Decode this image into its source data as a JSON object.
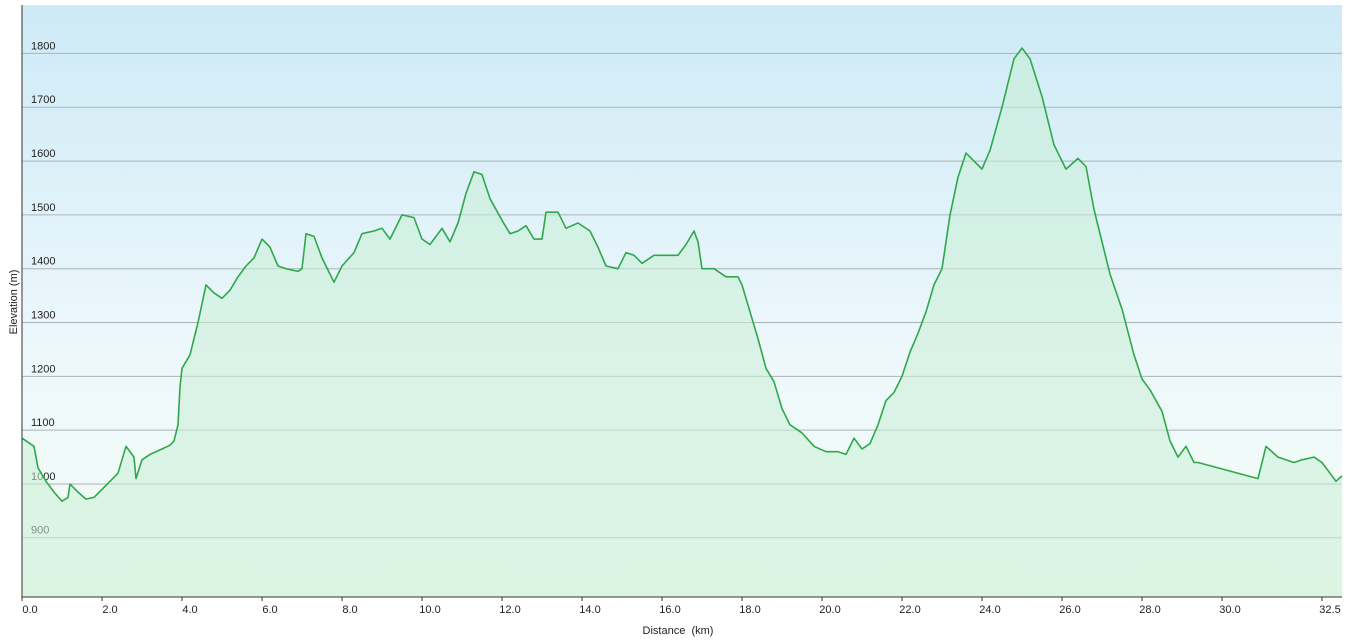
{
  "chart_data": {
    "type": "area",
    "x_label": "Distance  (km)",
    "y_label": "Elevation (m)",
    "line_color": "#2ea84b",
    "fill_color": "#c9efd6",
    "grid": true,
    "xlim": [
      0,
      33
    ],
    "ylim": [
      790,
      1890
    ],
    "xticks": [
      {
        "value": 0,
        "label": "0.0"
      },
      {
        "value": 2,
        "label": "2.0"
      },
      {
        "value": 4,
        "label": "4.0"
      },
      {
        "value": 6,
        "label": "6.0"
      },
      {
        "value": 8,
        "label": "8.0"
      },
      {
        "value": 10,
        "label": "10.0"
      },
      {
        "value": 12,
        "label": "12.0"
      },
      {
        "value": 14,
        "label": "14.0"
      },
      {
        "value": 16,
        "label": "16.0"
      },
      {
        "value": 18,
        "label": "18.0"
      },
      {
        "value": 20,
        "label": "20.0"
      },
      {
        "value": 22,
        "label": "22.0"
      },
      {
        "value": 24,
        "label": "24.0"
      },
      {
        "value": 26,
        "label": "26.0"
      },
      {
        "value": 28,
        "label": "28.0"
      },
      {
        "value": 30,
        "label": "30.0"
      },
      {
        "value": 32.5,
        "label": "32.5"
      }
    ],
    "yticks": [
      900,
      1000,
      1100,
      1200,
      1300,
      1400,
      1500,
      1600,
      1700,
      1800
    ],
    "x": [
      0,
      0.3,
      0.4,
      0.6,
      0.8,
      1.0,
      1.15,
      1.2,
      1.4,
      1.6,
      1.8,
      2.0,
      2.2,
      2.4,
      2.5,
      2.6,
      2.8,
      2.85,
      3.0,
      3.2,
      3.5,
      3.7,
      3.8,
      3.9,
      3.95,
      4.0,
      4.2,
      4.4,
      4.6,
      4.8,
      5.0,
      5.2,
      5.4,
      5.6,
      5.8,
      6.0,
      6.2,
      6.4,
      6.6,
      6.9,
      7.0,
      7.1,
      7.3,
      7.5,
      7.7,
      7.8,
      8.0,
      8.3,
      8.5,
      8.8,
      9.0,
      9.2,
      9.5,
      9.8,
      10.0,
      10.2,
      10.5,
      10.7,
      10.9,
      11.1,
      11.3,
      11.5,
      11.7,
      12.0,
      12.2,
      12.4,
      12.6,
      12.8,
      13.0,
      13.1,
      13.4,
      13.6,
      13.9,
      14.2,
      14.4,
      14.6,
      14.9,
      15.1,
      15.3,
      15.5,
      15.8,
      16.1,
      16.4,
      16.6,
      16.8,
      16.9,
      17.0,
      17.3,
      17.6,
      17.9,
      18.0,
      18.2,
      18.4,
      18.6,
      18.8,
      19.0,
      19.2,
      19.5,
      19.8,
      20.1,
      20.4,
      20.6,
      20.8,
      21.0,
      21.2,
      21.4,
      21.6,
      21.8,
      22.0,
      22.2,
      22.4,
      22.6,
      22.8,
      23.0,
      23.2,
      23.4,
      23.6,
      23.8,
      24.0,
      24.2,
      24.5,
      24.8,
      25.0,
      25.2,
      25.5,
      25.8,
      26.1,
      26.4,
      26.6,
      26.8,
      27.0,
      27.2,
      27.5,
      27.8,
      28.0,
      28.2,
      28.5,
      28.7,
      28.9,
      29.1,
      29.3,
      29.4,
      30.9,
      31.0,
      31.1,
      31.4,
      31.8,
      32.0,
      32.3,
      32.5,
      32.7,
      32.85,
      33.0
    ],
    "values": [
      1085,
      1070,
      1030,
      1005,
      985,
      968,
      975,
      1000,
      985,
      972,
      975,
      990,
      1005,
      1020,
      1045,
      1070,
      1050,
      1010,
      1045,
      1055,
      1065,
      1072,
      1080,
      1110,
      1180,
      1215,
      1240,
      1300,
      1370,
      1355,
      1345,
      1360,
      1385,
      1405,
      1420,
      1455,
      1440,
      1405,
      1400,
      1395,
      1400,
      1465,
      1460,
      1420,
      1390,
      1375,
      1405,
      1430,
      1465,
      1470,
      1475,
      1455,
      1500,
      1495,
      1455,
      1445,
      1475,
      1450,
      1485,
      1540,
      1580,
      1575,
      1530,
      1490,
      1465,
      1470,
      1480,
      1455,
      1455,
      1505,
      1505,
      1475,
      1485,
      1470,
      1440,
      1405,
      1400,
      1430,
      1425,
      1410,
      1425,
      1425,
      1425,
      1445,
      1470,
      1450,
      1400,
      1400,
      1385,
      1385,
      1370,
      1320,
      1270,
      1215,
      1190,
      1140,
      1110,
      1095,
      1070,
      1060,
      1060,
      1055,
      1085,
      1065,
      1075,
      1110,
      1155,
      1170,
      1200,
      1245,
      1280,
      1320,
      1370,
      1400,
      1500,
      1570,
      1615,
      1600,
      1585,
      1620,
      1700,
      1790,
      1810,
      1790,
      1720,
      1630,
      1585,
      1605,
      1590,
      1510,
      1450,
      1390,
      1325,
      1240,
      1195,
      1175,
      1135,
      1080,
      1050,
      1070,
      1040,
      1040,
      1010,
      1040,
      1070,
      1050,
      1040,
      1045,
      1050,
      1040,
      1020,
      1005,
      1015
    ]
  }
}
